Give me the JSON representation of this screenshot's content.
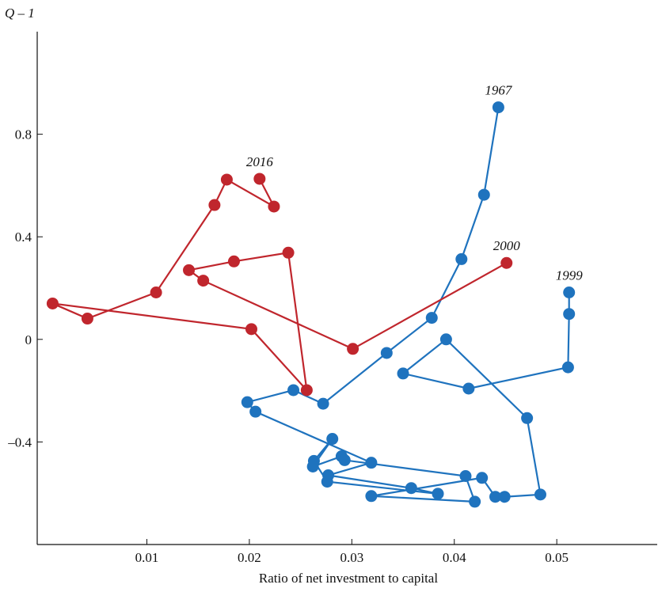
{
  "chart_data": {
    "type": "scatter-line",
    "x_label": "Ratio of net investment to capital",
    "y_label": "Q – 1",
    "xlim": [
      -0.0007,
      0.0598
    ],
    "ylim": [
      -0.8,
      1.2
    ],
    "xticks": [
      0.01,
      0.02,
      0.03,
      0.04,
      0.05
    ],
    "yticks": [
      {
        "value": 0.8,
        "label": "0.8"
      },
      {
        "value": 0.4,
        "label": "0.4"
      },
      0,
      {
        "value": -0.4,
        "label": "–0.4"
      }
    ],
    "grid": false,
    "series": [
      {
        "color": "#1f73be",
        "start_label": "1967",
        "end_label": "1999",
        "x": [
          0.0443,
          0.0429,
          0.0407,
          0.0378,
          0.0334,
          0.0272,
          0.0243,
          0.0198,
          0.0206,
          0.0319,
          0.0277,
          0.0358,
          0.0384,
          0.0276,
          0.0263,
          0.0281,
          0.0262,
          0.029,
          0.0293,
          0.0411,
          0.042,
          0.0319,
          0.0427,
          0.044,
          0.0449,
          0.0484,
          0.0471,
          0.0392,
          0.035,
          0.0414,
          0.0511,
          0.0512,
          0.0512
        ],
        "y": [
          0.905,
          0.564,
          0.313,
          0.084,
          -0.053,
          -0.251,
          -0.198,
          -0.245,
          -0.282,
          -0.481,
          -0.53,
          -0.58,
          -0.602,
          -0.555,
          -0.474,
          -0.388,
          -0.496,
          -0.456,
          -0.471,
          -0.533,
          -0.633,
          -0.611,
          -0.54,
          -0.614,
          -0.614,
          -0.605,
          -0.307,
          0.0,
          -0.133,
          -0.192,
          -0.109,
          0.099,
          0.183
        ]
      },
      {
        "color": "#c0262d",
        "start_label": "2000",
        "end_label": "2016",
        "x": [
          0.0451,
          0.0301,
          0.0155,
          0.0141,
          0.0185,
          0.0238,
          0.0256,
          0.0202,
          0.0008,
          0.0042,
          0.0109,
          0.0166,
          0.0178,
          0.0224,
          0.021
        ],
        "y": [
          0.298,
          -0.037,
          0.229,
          0.27,
          0.304,
          0.338,
          -0.198,
          0.04,
          0.14,
          0.081,
          0.183,
          0.524,
          0.623,
          0.518,
          0.626
        ]
      }
    ]
  }
}
